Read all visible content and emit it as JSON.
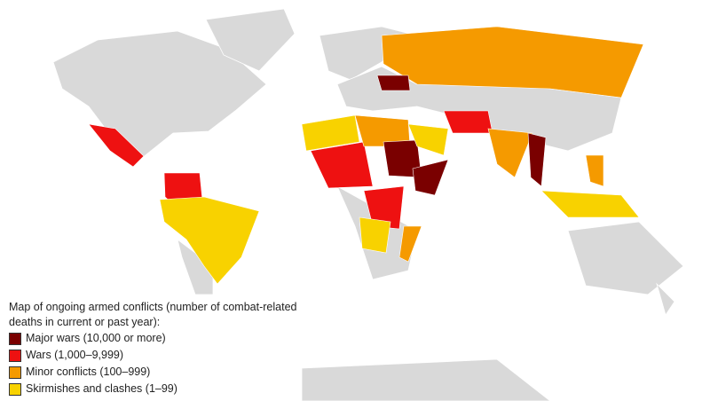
{
  "legend": {
    "title": "Map of ongoing armed conflicts (number of combat-related deaths in current or past year):",
    "items": [
      {
        "label": "Major wars (10,000 or more)",
        "color": "#7a0000"
      },
      {
        "label": "Wars (1,000–9,999)",
        "color": "#ee1111"
      },
      {
        "label": "Minor conflicts (100–999)",
        "color": "#f59a00"
      },
      {
        "label": "Skirmishes and clashes (1–99)",
        "color": "#f8d200"
      }
    ]
  }
}
